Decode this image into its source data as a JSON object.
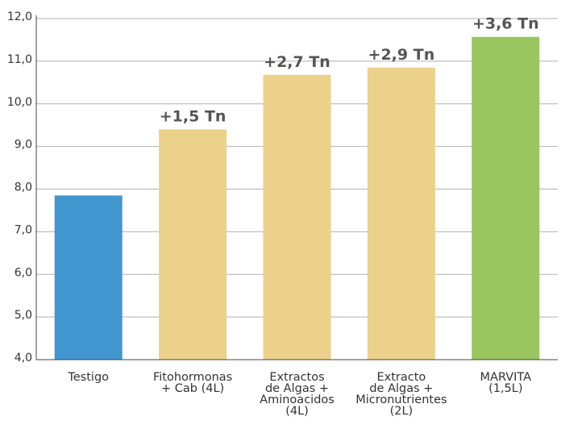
{
  "chart_data": {
    "type": "bar",
    "categories": [
      [
        "Testigo"
      ],
      [
        "Fitohormonas",
        "+ Cab (4L)"
      ],
      [
        "Extractos",
        "de Algas +",
        "Aminoacidos",
        "(4L)"
      ],
      [
        "Extracto",
        "de Algas +",
        "Micronutrientes",
        "(2L)"
      ],
      [
        "MARVITA",
        "(1,5L)"
      ]
    ],
    "values": [
      7.85,
      9.4,
      10.68,
      10.85,
      11.57
    ],
    "data_labels": [
      "",
      "+1,5 Tn",
      "+2,7 Tn",
      "+2,9 Tn",
      "+3,6 Tn"
    ],
    "colors": [
      "#4196cf",
      "#ecd18a",
      "#ecd18a",
      "#ecd18a",
      "#99c65f"
    ],
    "yticks": [
      {
        "value": 4,
        "label": "4,0"
      },
      {
        "value": 5,
        "label": "5,0"
      },
      {
        "value": 6,
        "label": "6,0"
      },
      {
        "value": 7,
        "label": "7,0"
      },
      {
        "value": 8,
        "label": "8,0"
      },
      {
        "value": 9,
        "label": "9,0"
      },
      {
        "value": 10,
        "label": "10,0"
      },
      {
        "value": 11,
        "label": "11,0"
      },
      {
        "value": 12,
        "label": "12,0"
      }
    ],
    "ylim": [
      4,
      12
    ],
    "grid": true,
    "title": "",
    "xlabel": "",
    "ylabel": ""
  }
}
